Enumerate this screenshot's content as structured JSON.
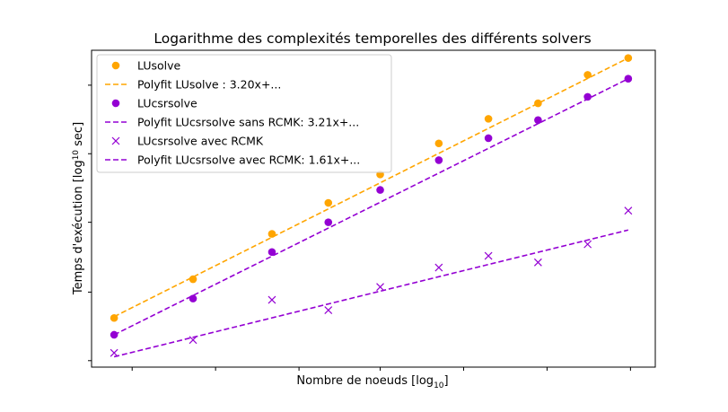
{
  "chart_data": {
    "type": "scatter",
    "title": "Logarithme des complexités temporelles des différents solvers",
    "xlabel": "Nombre de noeuds [log",
    "xlabel_sub": "10",
    "xlabel_suffix": "]",
    "ylabel": "Temps d'exécution [log",
    "ylabel_sub": "10",
    "ylabel_suffix": " sec]",
    "grid": false,
    "legend_position": "top-left",
    "x": [
      1.0,
      1.35,
      1.7,
      1.95,
      2.18,
      2.44,
      2.66,
      2.88,
      3.1,
      3.28
    ],
    "series": [
      {
        "name": "LUsolve",
        "kind": "points",
        "marker": "circle",
        "color": "#ffa500",
        "y": [
          0.18,
          0.48,
          0.83,
          1.07,
          1.29,
          1.53,
          1.72,
          1.84,
          2.06,
          2.19
        ]
      },
      {
        "name": "Polyfit LUsolve : 3.20x+...",
        "kind": "fit",
        "color": "#ffa500",
        "x0": 1.0,
        "y0": 0.19,
        "x1": 3.28,
        "y1": 2.19
      },
      {
        "name": "LUcsrsolve",
        "kind": "points",
        "marker": "circle",
        "color": "#9400d3",
        "y": [
          0.05,
          0.33,
          0.69,
          0.92,
          1.17,
          1.4,
          1.57,
          1.71,
          1.89,
          2.03
        ]
      },
      {
        "name": "Polyfit LUcsrsolve sans RCMK: 3.21x+...",
        "kind": "fit",
        "color": "#9400d3",
        "x0": 1.0,
        "y0": 0.05,
        "x1": 3.28,
        "y1": 2.03
      },
      {
        "name": "LUcsrsolve avec RCMK",
        "kind": "points",
        "marker": "x",
        "color": "#9400d3",
        "y": [
          -0.09,
          0.01,
          0.32,
          0.24,
          0.42,
          0.57,
          0.66,
          0.61,
          0.75,
          1.01
        ]
      },
      {
        "name": "Polyfit LUcsrsolve avec RCMK: 1.61x+...",
        "kind": "fit",
        "color": "#9400d3",
        "x0": 1.0,
        "y0": -0.12,
        "x1": 3.28,
        "y1": 0.86
      }
    ],
    "xlim": [
      0.9,
      3.4
    ],
    "ylim": [
      -0.2,
      2.25
    ],
    "x_ticks": [
      1.08,
      1.45,
      1.82,
      2.18,
      2.55,
      2.92,
      3.29
    ],
    "y_ticks": [
      -0.15,
      0.38,
      0.92,
      1.45,
      1.98
    ]
  }
}
